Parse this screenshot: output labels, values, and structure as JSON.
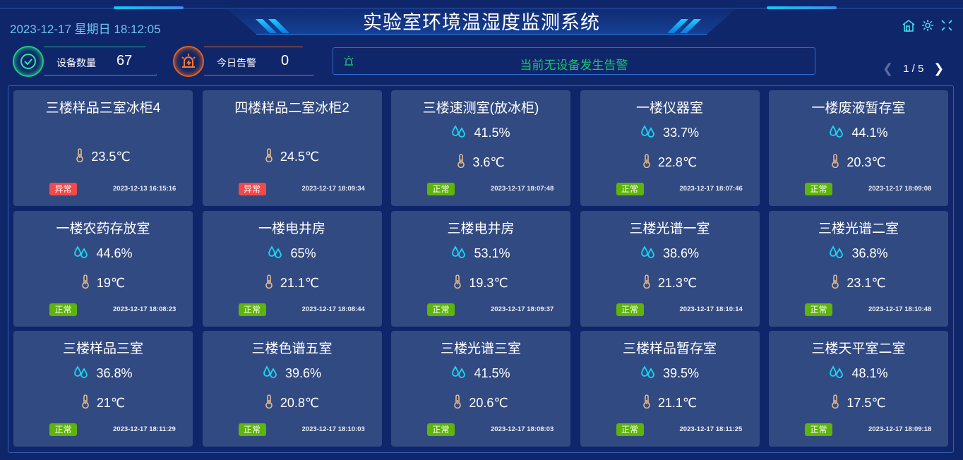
{
  "header": {
    "title": "实验室环境温湿度监测系统",
    "datetime": "2023-12-17 星期日 18:12:05",
    "icons": [
      "home-icon",
      "gear-icon",
      "fullscreen-icon"
    ]
  },
  "stats": {
    "device_label": "设备数量",
    "device_count": "67",
    "alarm_label": "今日告警",
    "alarm_count": "0"
  },
  "alert": {
    "icon": "alarm-light-icon",
    "text": "当前无设备发生告警"
  },
  "pager": {
    "text": "1 / 5"
  },
  "colors": {
    "normal": "#5fb40a",
    "abnormal": "#f04a4a",
    "humidity_icon": "#19d6f0",
    "temp_icon": "#e6b98a"
  },
  "devices": [
    {
      "name": "三楼样品三室冰柜4",
      "humidity": null,
      "temp": "23.5℃",
      "status": "异常",
      "time": "2023-12-13 16:15:16"
    },
    {
      "name": "四楼样品二室冰柜2",
      "humidity": null,
      "temp": "24.5℃",
      "status": "异常",
      "time": "2023-12-17 18:09:34"
    },
    {
      "name": "三楼速测室(放冰柜)",
      "humidity": "41.5%",
      "temp": "3.6℃",
      "status": "正常",
      "time": "2023-12-17 18:07:48"
    },
    {
      "name": "一楼仪器室",
      "humidity": "33.7%",
      "temp": "22.8℃",
      "status": "正常",
      "time": "2023-12-17 18:07:46"
    },
    {
      "name": "一楼废液暂存室",
      "humidity": "44.1%",
      "temp": "20.3℃",
      "status": "正常",
      "time": "2023-12-17 18:09:08"
    },
    {
      "name": "一楼农药存放室",
      "humidity": "44.6%",
      "temp": "19℃",
      "status": "正常",
      "time": "2023-12-17 18:08:23"
    },
    {
      "name": "一楼电井房",
      "humidity": "65%",
      "temp": "21.1℃",
      "status": "正常",
      "time": "2023-12-17 18:08:44"
    },
    {
      "name": "三楼电井房",
      "humidity": "53.1%",
      "temp": "19.3℃",
      "status": "正常",
      "time": "2023-12-17 18:09:37"
    },
    {
      "name": "三楼光谱一室",
      "humidity": "38.6%",
      "temp": "21.3℃",
      "status": "正常",
      "time": "2023-12-17 18:10:14"
    },
    {
      "name": "三楼光谱二室",
      "humidity": "36.8%",
      "temp": "23.1℃",
      "status": "正常",
      "time": "2023-12-17 18:10:48"
    },
    {
      "name": "三楼样品三室",
      "humidity": "36.8%",
      "temp": "21℃",
      "status": "正常",
      "time": "2023-12-17 18:11:29"
    },
    {
      "name": "三楼色谱五室",
      "humidity": "39.6%",
      "temp": "20.8℃",
      "status": "正常",
      "time": "2023-12-17 18:10:03"
    },
    {
      "name": "三楼光谱三室",
      "humidity": "41.5%",
      "temp": "20.6℃",
      "status": "正常",
      "time": "2023-12-17 18:08:03"
    },
    {
      "name": "三楼样品暂存室",
      "humidity": "39.5%",
      "temp": "21.1℃",
      "status": "正常",
      "time": "2023-12-17 18:11:25"
    },
    {
      "name": "三楼天平室二室",
      "humidity": "48.1%",
      "temp": "17.5℃",
      "status": "正常",
      "time": "2023-12-17 18:09:18"
    }
  ]
}
